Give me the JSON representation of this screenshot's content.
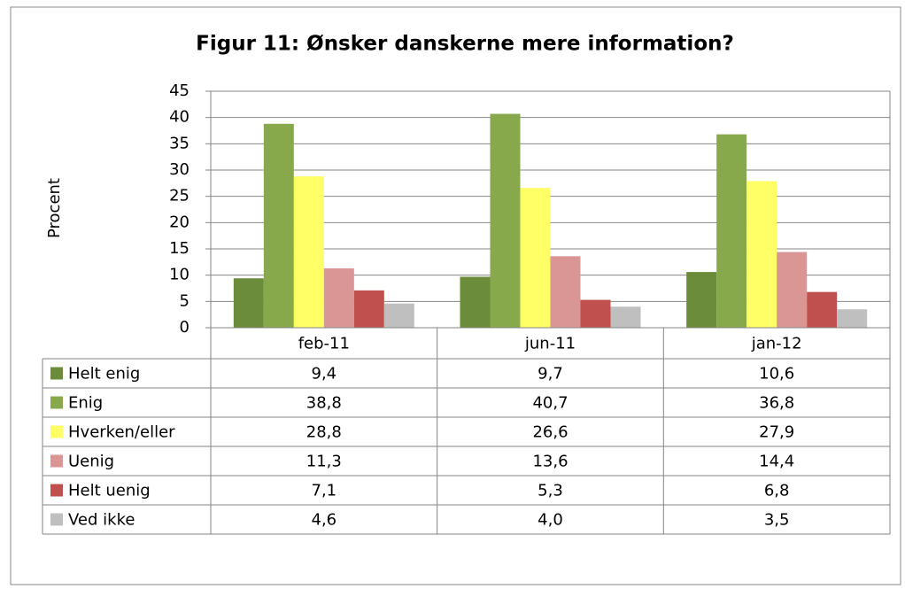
{
  "chart_data": {
    "type": "bar",
    "title": "Figur 11: Ønsker danskerne mere information?",
    "y_label": "Procent",
    "categories": [
      "feb-11",
      "jun-11",
      "jan-12"
    ],
    "series": [
      {
        "name": "Helt enig",
        "color": "#6b8c3a",
        "values": [
          9.4,
          9.7,
          10.6
        ],
        "value_labels": [
          "9,4",
          "9,7",
          "10,6"
        ]
      },
      {
        "name": "Enig",
        "color": "#87a94c",
        "values": [
          38.8,
          40.7,
          36.8
        ],
        "value_labels": [
          "38,8",
          "40,7",
          "36,8"
        ]
      },
      {
        "name": "Hverken/eller",
        "color": "#ffff66",
        "values": [
          28.8,
          26.6,
          27.9
        ],
        "value_labels": [
          "28,8",
          "26,6",
          "27,9"
        ]
      },
      {
        "name": "Uenig",
        "color": "#d99694",
        "values": [
          11.3,
          13.6,
          14.4
        ],
        "value_labels": [
          "11,3",
          "13,6",
          "14,4"
        ]
      },
      {
        "name": "Helt uenig",
        "color": "#c0504d",
        "values": [
          7.1,
          5.3,
          6.8
        ],
        "value_labels": [
          "7,1",
          "5,3",
          "6,8"
        ]
      },
      {
        "name": "Ved ikke",
        "color": "#bfbfbf",
        "values": [
          4.6,
          4.0,
          3.5
        ],
        "value_labels": [
          "4,6",
          "4,0",
          "3,5"
        ]
      }
    ],
    "ylim": [
      0,
      45
    ],
    "yticks": [
      0,
      5,
      10,
      15,
      20,
      25,
      30,
      35,
      40,
      45
    ],
    "grid": true
  }
}
